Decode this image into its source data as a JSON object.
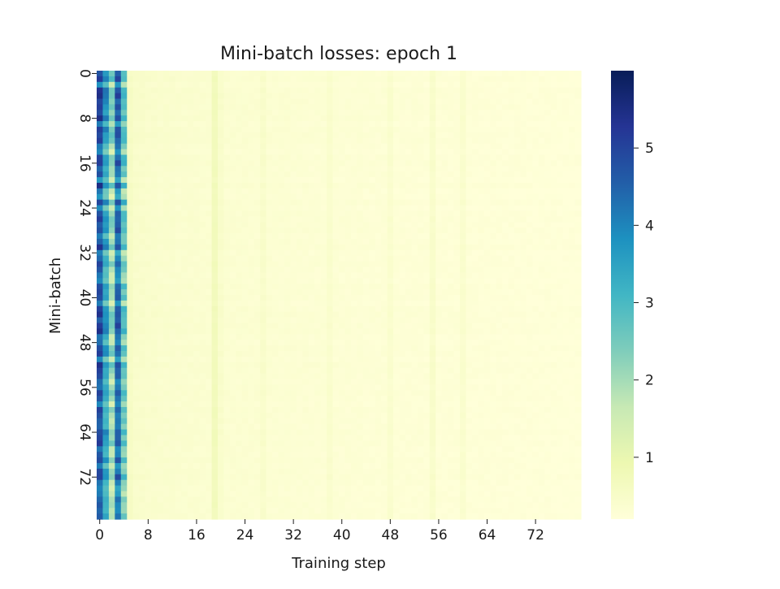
{
  "chart_data": {
    "type": "heatmap",
    "title": "Mini-batch losses: epoch 1",
    "xlabel": "Training step",
    "ylabel": "Mini-batch",
    "x_range": [
      0,
      80
    ],
    "y_range": [
      0,
      80
    ],
    "x_ticks": [
      "0",
      "8",
      "16",
      "24",
      "32",
      "40",
      "48",
      "56",
      "64",
      "72"
    ],
    "y_ticks": [
      "0",
      "8",
      "16",
      "24",
      "32",
      "40",
      "48",
      "56",
      "64",
      "72"
    ],
    "colorbar": {
      "range": [
        0.2,
        6.0
      ],
      "ticks": [
        "1",
        "2",
        "3",
        "4",
        "5"
      ],
      "colormap": "YlGnBu"
    },
    "column_base_loss": [
      4.6,
      3.3,
      2.0,
      4.2,
      2.5,
      0.55,
      0.45,
      0.45,
      0.42,
      0.42,
      0.4,
      0.4,
      0.4,
      0.38,
      0.38,
      0.38,
      0.37,
      0.36,
      0.36,
      0.72,
      0.45,
      0.35,
      0.34,
      0.34,
      0.34,
      0.33,
      0.33,
      0.45,
      0.33,
      0.32,
      0.32,
      0.32,
      0.31,
      0.31,
      0.31,
      0.3,
      0.3,
      0.3,
      0.42,
      0.3,
      0.29,
      0.29,
      0.29,
      0.29,
      0.28,
      0.28,
      0.28,
      0.28,
      0.4,
      0.27,
      0.27,
      0.27,
      0.27,
      0.27,
      0.26,
      0.45,
      0.26,
      0.26,
      0.26,
      0.26,
      0.4,
      0.25,
      0.25,
      0.25,
      0.25,
      0.25,
      0.24,
      0.24,
      0.24,
      0.24,
      0.24,
      0.23,
      0.23,
      0.23,
      0.23,
      0.23,
      0.22,
      0.22,
      0.22,
      0.22
    ]
  }
}
